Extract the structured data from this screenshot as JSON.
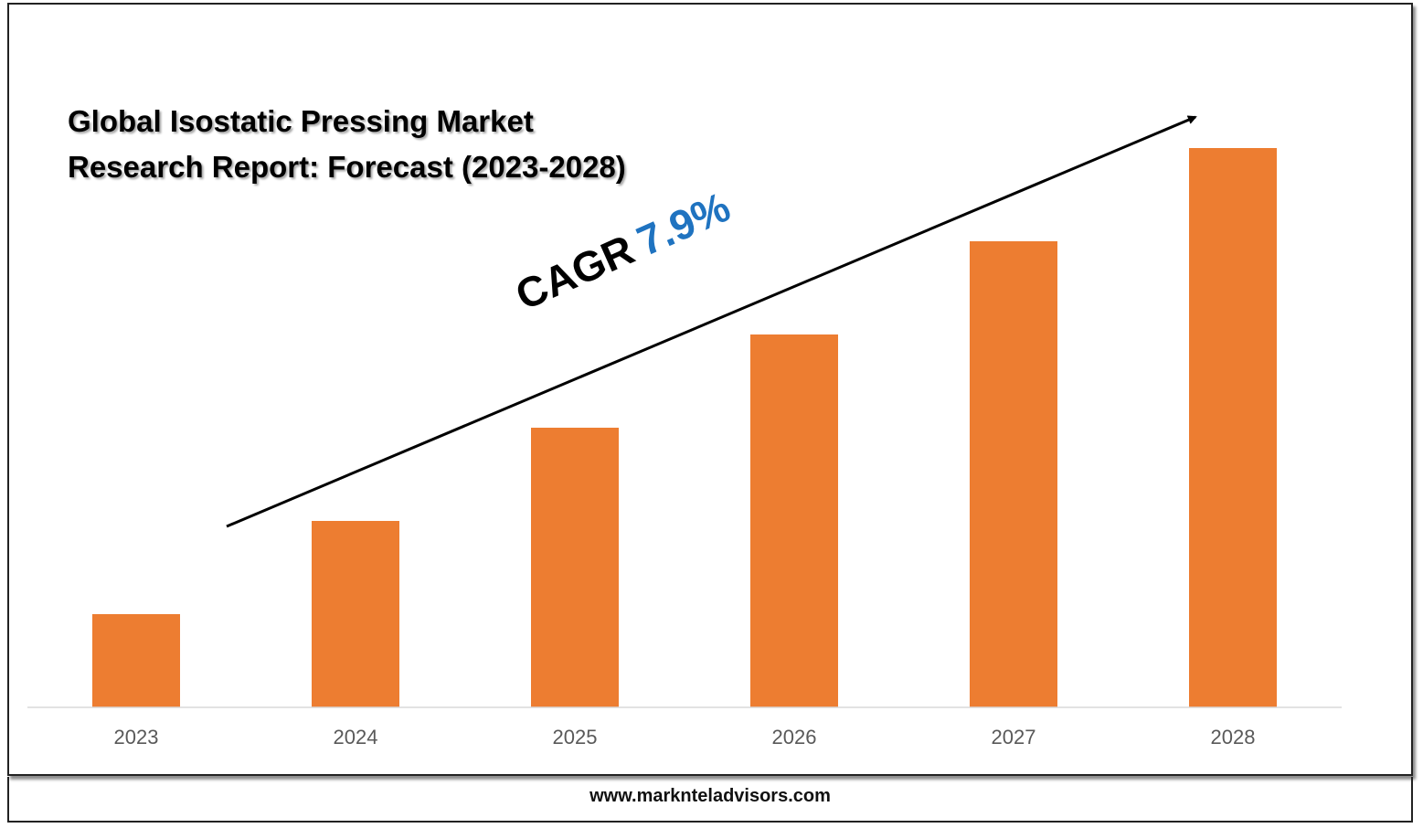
{
  "chart_data": {
    "type": "bar",
    "title_lines": [
      "Global Isostatic Pressing Market",
      "Research Report: Forecast (2023-2028)"
    ],
    "categories": [
      "2023",
      "2024",
      "2025",
      "2026",
      "2027",
      "2028"
    ],
    "values": [
      1.0,
      2.0,
      3.0,
      4.0,
      5.0,
      6.0
    ],
    "xlabel": "",
    "ylabel": "",
    "ylim": [
      0,
      6
    ],
    "grid": false,
    "legend": "none",
    "bar_color": "#ed7d31",
    "annotation": {
      "label": "CAGR",
      "value": "7.9%",
      "value_color": "#1f73c0"
    }
  },
  "footer": {
    "url": "www.marknteladvisors.com"
  }
}
